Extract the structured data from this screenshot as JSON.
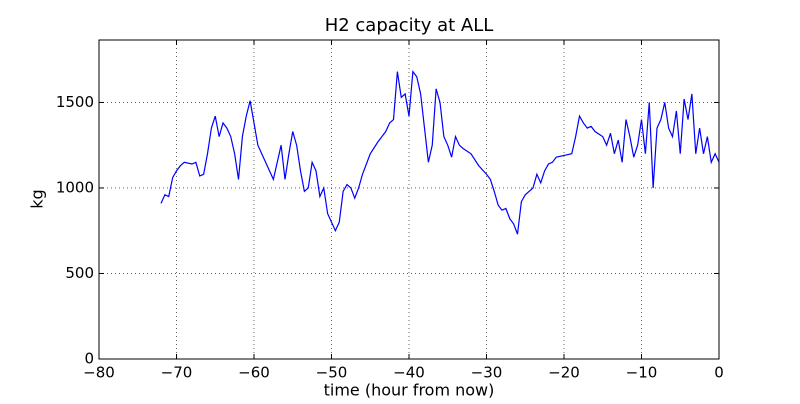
{
  "chart_data": {
    "type": "line",
    "title": "H2 capacity at ALL",
    "x_label": "time (hour from now)",
    "y_label": "kg",
    "xlim": [
      -80,
      0
    ],
    "ylim": [
      0,
      1865
    ],
    "xticks": [
      {
        "value": -80,
        "label": "−80"
      },
      {
        "value": -70,
        "label": "−70"
      },
      {
        "value": -60,
        "label": "−60"
      },
      {
        "value": -50,
        "label": "−50"
      },
      {
        "value": -40,
        "label": "−40"
      },
      {
        "value": -30,
        "label": "−30"
      },
      {
        "value": -20,
        "label": "−20"
      },
      {
        "value": -10,
        "label": "−10"
      },
      0
    ],
    "yticks": [
      0,
      500,
      1000,
      1500
    ],
    "grid": true,
    "series": [
      {
        "color": "#0000ff",
        "x": [
          -72,
          -71.5,
          -71,
          -70.5,
          -70,
          -69.5,
          -69,
          -68,
          -67.5,
          -67,
          -66.5,
          -66,
          -65.5,
          -65,
          -64.5,
          -64,
          -63.5,
          -63,
          -62.5,
          -62,
          -61.5,
          -61,
          -60.5,
          -60,
          -59.5,
          -59,
          -58.5,
          -58,
          -57.5,
          -57,
          -56.5,
          -56,
          -55.5,
          -55,
          -54.5,
          -54,
          -53.5,
          -53,
          -52.5,
          -52,
          -51.5,
          -51,
          -50.5,
          -50,
          -49.5,
          -49,
          -48.5,
          -48,
          -47.5,
          -47,
          -46.5,
          -46,
          -45,
          -44,
          -43,
          -42.5,
          -42,
          -41.5,
          -41,
          -40.5,
          -40,
          -39.5,
          -39,
          -38.5,
          -38,
          -37.5,
          -37,
          -36.5,
          -36,
          -35.5,
          -35,
          -34.5,
          -34,
          -33.5,
          -33,
          -32,
          -31,
          -30,
          -29.5,
          -29,
          -28.5,
          -28,
          -27.5,
          -27,
          -26.5,
          -26,
          -25.5,
          -25,
          -24,
          -23.5,
          -23,
          -22.5,
          -22,
          -21.5,
          -21,
          -20,
          -19,
          -18.5,
          -18,
          -17.5,
          -17,
          -16.5,
          -16,
          -15,
          -14.5,
          -14,
          -13.5,
          -13,
          -12.5,
          -12,
          -11.5,
          -11,
          -10.5,
          -10,
          -9.5,
          -9,
          -8.5,
          -8,
          -7.5,
          -7,
          -6.5,
          -6,
          -5.5,
          -5,
          -4.5,
          -4,
          -3.5,
          -3,
          -2.5,
          -2,
          -1.5,
          -1,
          -0.5,
          0
        ],
        "values": [
          910,
          960,
          950,
          1060,
          1100,
          1130,
          1150,
          1140,
          1150,
          1070,
          1080,
          1200,
          1350,
          1420,
          1300,
          1380,
          1350,
          1300,
          1200,
          1050,
          1300,
          1420,
          1510,
          1380,
          1250,
          1200,
          1150,
          1100,
          1050,
          1150,
          1250,
          1050,
          1200,
          1330,
          1250,
          1100,
          980,
          1000,
          1150,
          1100,
          950,
          1000,
          850,
          800,
          750,
          800,
          980,
          1020,
          1000,
          940,
          1000,
          1080,
          1200,
          1270,
          1330,
          1380,
          1400,
          1680,
          1530,
          1550,
          1420,
          1680,
          1650,
          1550,
          1350,
          1150,
          1250,
          1580,
          1500,
          1300,
          1250,
          1180,
          1300,
          1250,
          1230,
          1200,
          1130,
          1080,
          1050,
          980,
          900,
          870,
          880,
          820,
          790,
          730,
          920,
          960,
          1000,
          1080,
          1030,
          1100,
          1140,
          1150,
          1180,
          1190,
          1200,
          1300,
          1420,
          1380,
          1350,
          1360,
          1330,
          1300,
          1250,
          1320,
          1200,
          1280,
          1150,
          1400,
          1300,
          1180,
          1250,
          1400,
          1200,
          1500,
          1000,
          1350,
          1400,
          1500,
          1350,
          1300,
          1450,
          1200,
          1520,
          1400,
          1550,
          1200,
          1350,
          1200,
          1300,
          1150,
          1200,
          1150
        ]
      }
    ]
  }
}
